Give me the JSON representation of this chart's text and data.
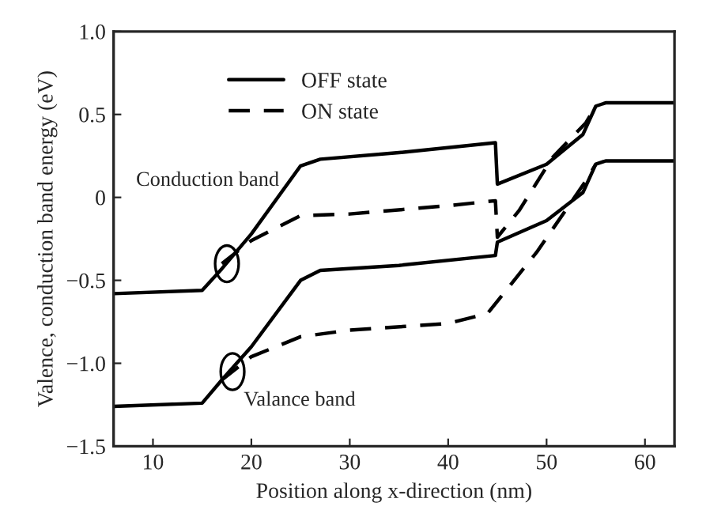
{
  "chart_data": {
    "type": "line",
    "xlabel": "Position along x-direction (nm)",
    "ylabel": "Valence, conduction band energy (eV)",
    "xlim": [
      6,
      63
    ],
    "xticks": [
      10,
      20,
      30,
      40,
      50,
      60
    ],
    "ylim": [
      -1.5,
      1.0
    ],
    "yticks": [
      {
        "value": -1.5,
        "label": "−1.5"
      },
      {
        "value": -1.0,
        "label": "−1.0"
      },
      {
        "value": -0.5,
        "label": "−0.5"
      },
      0,
      {
        "value": 0.5,
        "label": "0.5"
      },
      {
        "value": 1.0,
        "label": "1.0"
      }
    ],
    "series": [
      {
        "name": "OFF state",
        "color": "#000000",
        "line_style": "solid",
        "x": [
          6,
          15,
          17,
          20,
          25,
          27,
          35,
          44.8,
          45,
          50,
          53.7,
          55,
          56,
          63
        ],
        "values": [
          -0.58,
          -0.56,
          -0.43,
          -0.22,
          0.19,
          0.23,
          0.27,
          0.33,
          0.08,
          0.2,
          0.38,
          0.55,
          0.57,
          0.57
        ]
      },
      {
        "name": "ON state",
        "color": "#000000",
        "line_style": "dashed",
        "x": [
          17,
          20,
          25,
          30,
          40,
          44.8,
          45,
          47.2,
          50.6,
          54,
          55
        ],
        "values": [
          -0.4,
          -0.26,
          -0.11,
          -0.1,
          -0.05,
          -0.02,
          -0.24,
          -0.08,
          0.24,
          0.45,
          0.55
        ]
      },
      {
        "color": "#000000",
        "line_style": "solid",
        "x": [
          6,
          15,
          17,
          20,
          25,
          27,
          35,
          44.8,
          45,
          50,
          53.7,
          55,
          56,
          63
        ],
        "values": [
          -1.26,
          -1.24,
          -1.1,
          -0.9,
          -0.5,
          -0.44,
          -0.41,
          -0.35,
          -0.27,
          -0.14,
          0.03,
          0.2,
          0.22,
          0.22
        ]
      },
      {
        "color": "#000000",
        "line_style": "dashed",
        "x": [
          17,
          20,
          25,
          30,
          40,
          44,
          49,
          54,
          55
        ],
        "values": [
          -1.1,
          -0.96,
          -0.84,
          -0.8,
          -0.76,
          -0.7,
          -0.33,
          0.1,
          0.2
        ]
      }
    ],
    "annotations": [
      "Conduction band",
      "Valance band"
    ],
    "legend": "top left",
    "grid": false
  }
}
